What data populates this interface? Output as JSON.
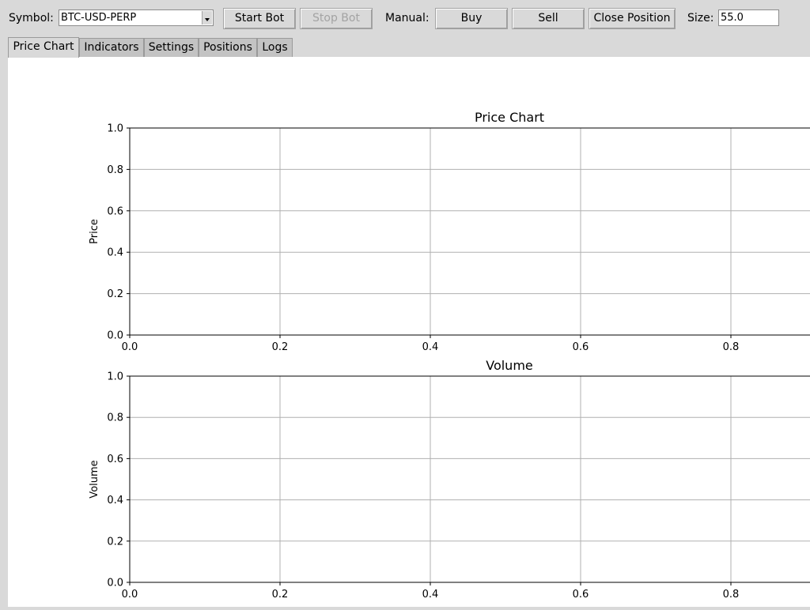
{
  "toolbar": {
    "symbol_label": "Symbol:",
    "symbol_value": "BTC-USD-PERP",
    "start_label": "Start Bot",
    "stop_label": "Stop Bot",
    "manual_label": "Manual:",
    "buy_label": "Buy",
    "sell_label": "Sell",
    "close_label": "Close Position",
    "size_label": "Size:",
    "size_value": "55.0"
  },
  "tabs": [
    {
      "label": "Price Chart",
      "active": true
    },
    {
      "label": "Indicators"
    },
    {
      "label": "Settings"
    },
    {
      "label": "Positions"
    },
    {
      "label": "Logs"
    }
  ],
  "chart_data": [
    {
      "type": "line",
      "title": "Price Chart",
      "xlabel": "",
      "ylabel": "Price",
      "xlim": [
        0,
        1
      ],
      "ylim": [
        0,
        1
      ],
      "x_ticks": [
        "0.0",
        "0.2",
        "0.4",
        "0.6",
        "0.8"
      ],
      "y_ticks": [
        "0.0",
        "0.2",
        "0.4",
        "0.6",
        "0.8",
        "1.0"
      ],
      "grid": true,
      "series": []
    },
    {
      "type": "bar",
      "title": "Volume",
      "xlabel": "",
      "ylabel": "Volume",
      "xlim": [
        0,
        1
      ],
      "ylim": [
        0,
        1
      ],
      "x_ticks": [
        "0.0",
        "0.2",
        "0.4",
        "0.6",
        "0.8"
      ],
      "y_ticks": [
        "0.0",
        "0.2",
        "0.4",
        "0.6",
        "0.8",
        "1.0"
      ],
      "grid": true,
      "series": []
    }
  ]
}
